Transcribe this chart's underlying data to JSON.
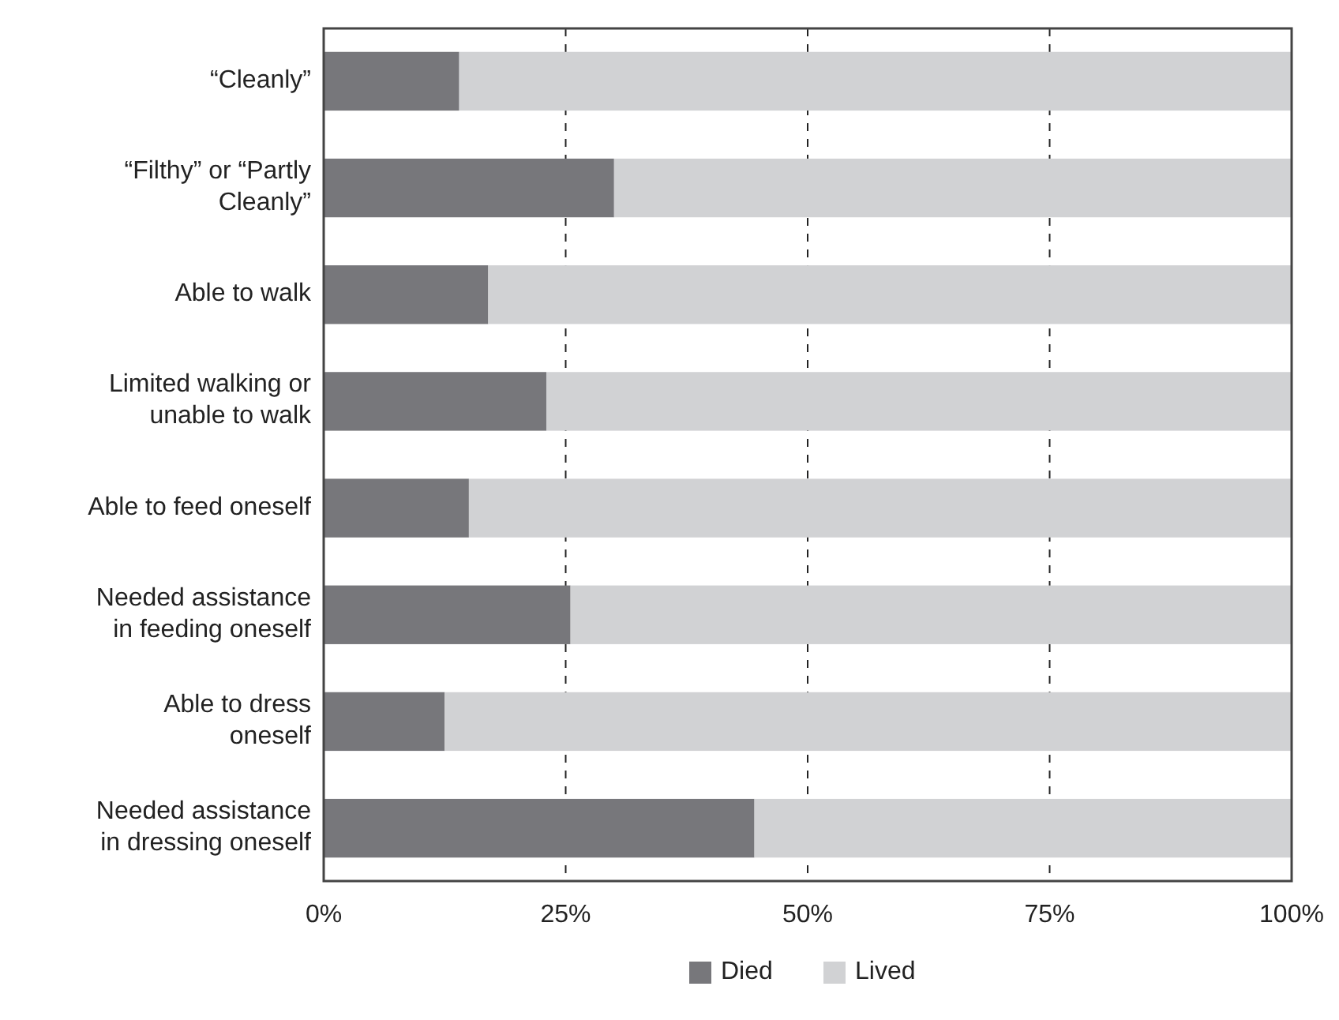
{
  "chart_data": {
    "type": "bar",
    "orientation": "horizontal",
    "stacked": true,
    "categories": [
      "“Cleanly”",
      "“Filthy” or “Partly\nCleanly”",
      "Able to walk",
      "Limited walking or\nunable to walk",
      "Able to feed oneself",
      "Needed assistance\nin feeding oneself",
      "Able to dress\noneself",
      "Needed assistance\nin dressing oneself"
    ],
    "series": [
      {
        "name": "Died",
        "color": "#77777b",
        "values": [
          14,
          30,
          17,
          23,
          15,
          25.5,
          12.5,
          44.5
        ]
      },
      {
        "name": "Lived",
        "color": "#d1d2d4",
        "values": [
          86,
          70,
          83,
          77,
          85,
          74.5,
          87.5,
          55.5
        ]
      }
    ],
    "xlim": [
      0,
      100
    ],
    "xticks": [
      {
        "value": 0,
        "label": "0%"
      },
      {
        "value": 25,
        "label": "25%"
      },
      {
        "value": 50,
        "label": "50%"
      },
      {
        "value": 75,
        "label": "75%"
      },
      {
        "value": 100,
        "label": "100%"
      }
    ],
    "grid": "x",
    "legend": "bottom"
  }
}
